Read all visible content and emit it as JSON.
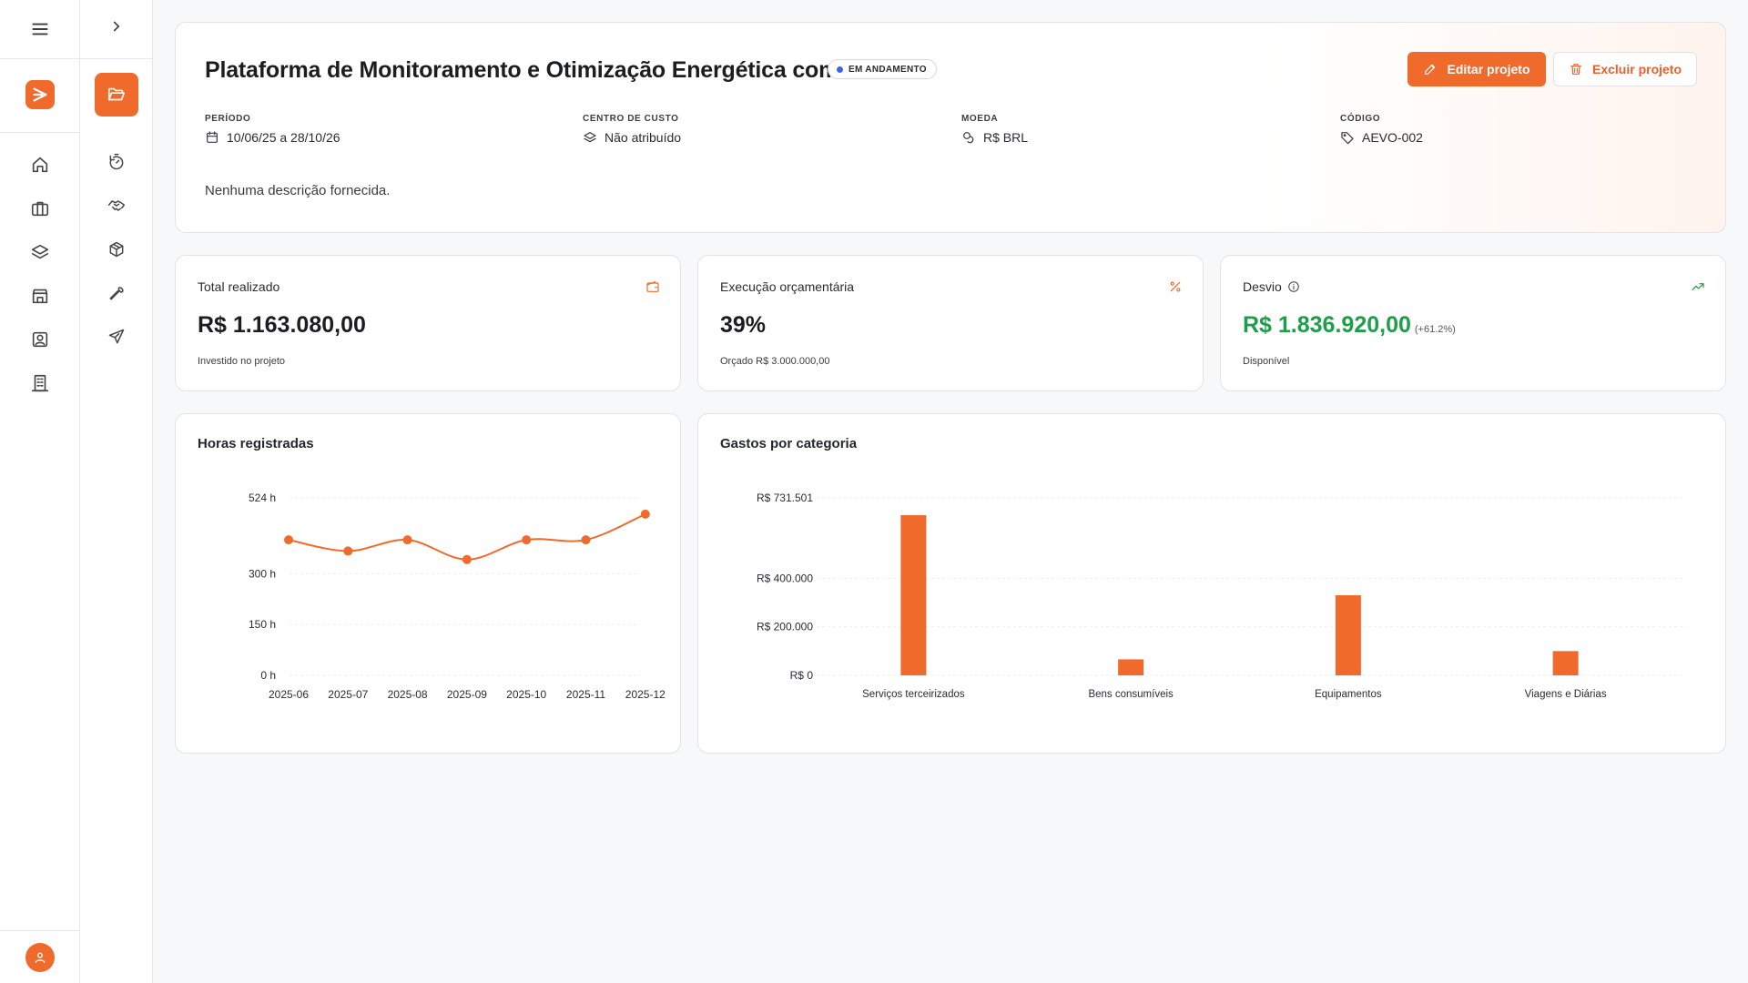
{
  "sidebar": {
    "items": [
      {
        "name": "home",
        "icon": "home-icon"
      },
      {
        "name": "briefcase",
        "icon": "briefcase-icon"
      },
      {
        "name": "layers",
        "icon": "layers-icon"
      },
      {
        "name": "store",
        "icon": "store-icon"
      },
      {
        "name": "contacts",
        "icon": "contact-icon"
      },
      {
        "name": "building",
        "icon": "building-icon"
      }
    ]
  },
  "subnav": {
    "items": [
      {
        "name": "projects",
        "icon": "folder-open-icon",
        "active": true
      },
      {
        "name": "timer",
        "icon": "timer-icon"
      },
      {
        "name": "handshake",
        "icon": "handshake-icon"
      },
      {
        "name": "package",
        "icon": "package-icon"
      },
      {
        "name": "tools",
        "icon": "wrench-icon"
      },
      {
        "name": "travel",
        "icon": "plane-icon"
      }
    ]
  },
  "project": {
    "title": "Plataforma de Monitoramento e Otimização Energética com A...",
    "status": "EM ANDAMENTO",
    "edit_label": "Editar projeto",
    "delete_label": "Excluir projeto",
    "meta": {
      "period_label": "PERÍODO",
      "period_value": "10/06/25 a 28/10/26",
      "cost_center_label": "CENTRO DE CUSTO",
      "cost_center_value": "Não atribuído",
      "currency_label": "MOEDA",
      "currency_value": "R$ BRL",
      "code_label": "CÓDIGO",
      "code_value": "AEVO-002"
    },
    "description": "Nenhuma descrição fornecida."
  },
  "kpis": {
    "total": {
      "label": "Total realizado",
      "value": "R$ 1.163.080,00",
      "sub": "Investido no projeto"
    },
    "execution": {
      "label": "Execução orçamentária",
      "value": "39%",
      "sub": "Orçado R$ 3.000.000,00"
    },
    "deviation": {
      "label": "Desvio",
      "value": "R$ 1.836.920,00",
      "delta": "(+61.2%)",
      "sub": "Disponível"
    }
  },
  "colors": {
    "accent": "#ef6a2b",
    "positive": "#1e9e4a",
    "status_dot": "#3b63f0"
  },
  "chart_data": [
    {
      "type": "line",
      "title": "Horas registradas",
      "x": [
        "2025-06",
        "2025-07",
        "2025-08",
        "2025-09",
        "2025-10",
        "2025-11",
        "2025-12"
      ],
      "series": [
        {
          "values": [
            400,
            367,
            400,
            342,
            400,
            400,
            476
          ]
        }
      ],
      "yticks": [
        0,
        150,
        300,
        524
      ],
      "ytick_labels": [
        "0 h",
        "150 h",
        "300 h",
        "524 h"
      ],
      "ylim": [
        0,
        524
      ],
      "grid": true
    },
    {
      "type": "bar",
      "title": "Gastos por categoria",
      "categories": [
        "Serviços terceirizados",
        "Bens consumíveis",
        "Equipamentos",
        "Viagens e Diárias"
      ],
      "values": [
        660000,
        66000,
        330000,
        100000
      ],
      "yticks": [
        0,
        200000,
        400000,
        731501
      ],
      "ytick_labels": [
        "R$ 0",
        "R$ 200.000",
        "R$ 400.000",
        "R$ 731.501"
      ],
      "ylim": [
        0,
        731501
      ],
      "grid": true
    }
  ]
}
